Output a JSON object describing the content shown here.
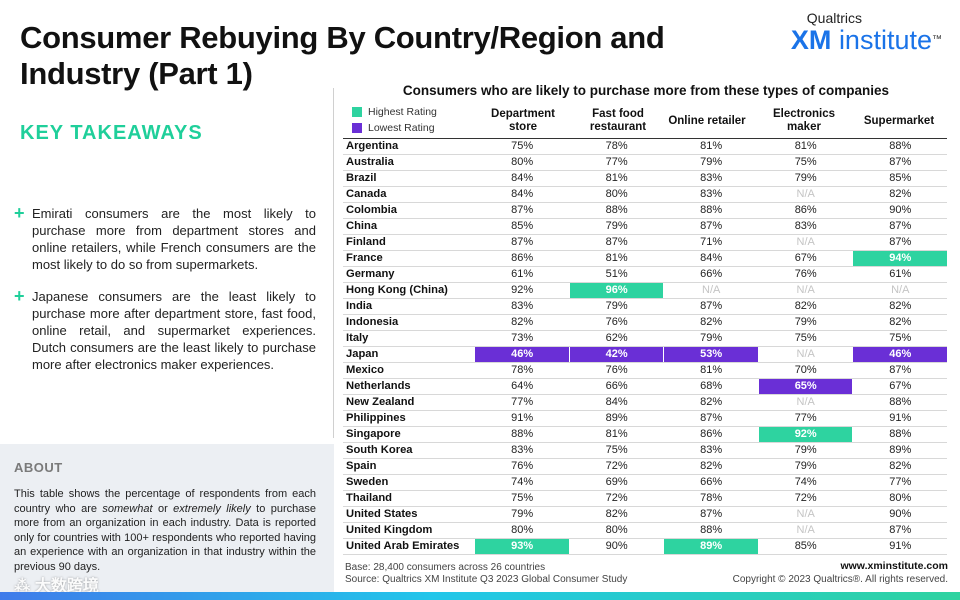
{
  "title": "Consumer Rebuying By Country/Region and Industry (Part 1)",
  "brand": {
    "top": "Qualtrics",
    "xm": "XM",
    "institute": "institute",
    "tm": "™"
  },
  "key_takeaways": {
    "title": "KEY TAKEAWAYS",
    "items": [
      "Emirati consumers are the most likely to purchase more from department stores and online retailers, while  French consumers are the most likely to do so from supermarkets.",
      "Japanese consumers are the least likely to purchase more after department store, fast food, online retail, and supermarket experiences. Dutch consumers are the least likely to purchase more after electronics maker experiences."
    ]
  },
  "about": {
    "title": "ABOUT",
    "text_before_1": "This table shows the percentage of respondents from each country who are ",
    "em1": "somewhat",
    "text_mid": " or ",
    "em2": "extremely likely",
    "text_after": " to purchase more from an organization in each industry. Data is reported only for countries with 100+ respondents who reported having an experience with an organization in that industry within the previous 90 days."
  },
  "watermark": "⁂ 大数跨境",
  "table": {
    "title": "Consumers who are likely to purchase more from these types of companies",
    "legend": {
      "high": "Highest Rating",
      "low": "Lowest Rating"
    },
    "colors": {
      "high": "#2ed3a0",
      "low": "#6a2fd6"
    },
    "columns": [
      "Department store",
      "Fast food restaurant",
      "Online retailer",
      "Electronics maker",
      "Supermarket"
    ],
    "rows": [
      {
        "country": "Argentina",
        "values": [
          "75%",
          "78%",
          "81%",
          "81%",
          "88%"
        ],
        "marks": [
          "",
          "",
          "",
          "",
          ""
        ]
      },
      {
        "country": "Australia",
        "values": [
          "80%",
          "77%",
          "79%",
          "75%",
          "87%"
        ],
        "marks": [
          "",
          "",
          "",
          "",
          ""
        ]
      },
      {
        "country": "Brazil",
        "values": [
          "84%",
          "81%",
          "83%",
          "79%",
          "85%"
        ],
        "marks": [
          "",
          "",
          "",
          "",
          ""
        ]
      },
      {
        "country": "Canada",
        "values": [
          "84%",
          "80%",
          "83%",
          "N/A",
          "82%"
        ],
        "marks": [
          "",
          "",
          "",
          "",
          ""
        ]
      },
      {
        "country": "Colombia",
        "values": [
          "87%",
          "88%",
          "88%",
          "86%",
          "90%"
        ],
        "marks": [
          "",
          "",
          "",
          "",
          ""
        ]
      },
      {
        "country": "China",
        "values": [
          "85%",
          "79%",
          "87%",
          "83%",
          "87%"
        ],
        "marks": [
          "",
          "",
          "",
          "",
          ""
        ]
      },
      {
        "country": "Finland",
        "values": [
          "87%",
          "87%",
          "71%",
          "N/A",
          "87%"
        ],
        "marks": [
          "",
          "",
          "",
          "",
          ""
        ]
      },
      {
        "country": "France",
        "values": [
          "86%",
          "81%",
          "84%",
          "67%",
          "94%"
        ],
        "marks": [
          "",
          "",
          "",
          "",
          "high"
        ]
      },
      {
        "country": "Germany",
        "values": [
          "61%",
          "51%",
          "66%",
          "76%",
          "61%"
        ],
        "marks": [
          "",
          "",
          "",
          "",
          ""
        ]
      },
      {
        "country": "Hong Kong (China)",
        "values": [
          "92%",
          "96%",
          "N/A",
          "N/A",
          "N/A"
        ],
        "marks": [
          "",
          "high",
          "",
          "",
          ""
        ]
      },
      {
        "country": "India",
        "values": [
          "83%",
          "79%",
          "87%",
          "82%",
          "82%"
        ],
        "marks": [
          "",
          "",
          "",
          "",
          ""
        ]
      },
      {
        "country": "Indonesia",
        "values": [
          "82%",
          "76%",
          "82%",
          "79%",
          "82%"
        ],
        "marks": [
          "",
          "",
          "",
          "",
          ""
        ]
      },
      {
        "country": "Italy",
        "values": [
          "73%",
          "62%",
          "79%",
          "75%",
          "75%"
        ],
        "marks": [
          "",
          "",
          "",
          "",
          ""
        ]
      },
      {
        "country": "Japan",
        "values": [
          "46%",
          "42%",
          "53%",
          "N/A",
          "46%"
        ],
        "marks": [
          "low",
          "low",
          "low",
          "",
          "low"
        ]
      },
      {
        "country": "Mexico",
        "values": [
          "78%",
          "76%",
          "81%",
          "70%",
          "87%"
        ],
        "marks": [
          "",
          "",
          "",
          "",
          ""
        ]
      },
      {
        "country": "Netherlands",
        "values": [
          "64%",
          "66%",
          "68%",
          "65%",
          "67%"
        ],
        "marks": [
          "",
          "",
          "",
          "low",
          ""
        ]
      },
      {
        "country": "New Zealand",
        "values": [
          "77%",
          "84%",
          "82%",
          "N/A",
          "88%"
        ],
        "marks": [
          "",
          "",
          "",
          "",
          ""
        ]
      },
      {
        "country": "Philippines",
        "values": [
          "91%",
          "89%",
          "87%",
          "77%",
          "91%"
        ],
        "marks": [
          "",
          "",
          "",
          "",
          ""
        ]
      },
      {
        "country": "Singapore",
        "values": [
          "88%",
          "81%",
          "86%",
          "92%",
          "88%"
        ],
        "marks": [
          "",
          "",
          "",
          "high",
          ""
        ]
      },
      {
        "country": "South Korea",
        "values": [
          "83%",
          "75%",
          "83%",
          "79%",
          "89%"
        ],
        "marks": [
          "",
          "",
          "",
          "",
          ""
        ]
      },
      {
        "country": "Spain",
        "values": [
          "76%",
          "72%",
          "82%",
          "79%",
          "82%"
        ],
        "marks": [
          "",
          "",
          "",
          "",
          ""
        ]
      },
      {
        "country": "Sweden",
        "values": [
          "74%",
          "69%",
          "66%",
          "74%",
          "77%"
        ],
        "marks": [
          "",
          "",
          "",
          "",
          ""
        ]
      },
      {
        "country": "Thailand",
        "values": [
          "75%",
          "72%",
          "78%",
          "72%",
          "80%"
        ],
        "marks": [
          "",
          "",
          "",
          "",
          ""
        ]
      },
      {
        "country": "United States",
        "values": [
          "79%",
          "82%",
          "87%",
          "N/A",
          "90%"
        ],
        "marks": [
          "",
          "",
          "",
          "",
          ""
        ]
      },
      {
        "country": "United Kingdom",
        "values": [
          "80%",
          "80%",
          "88%",
          "N/A",
          "87%"
        ],
        "marks": [
          "",
          "",
          "",
          "",
          ""
        ]
      },
      {
        "country": "United Arab Emirates",
        "values": [
          "93%",
          "90%",
          "89%",
          "85%",
          "91%"
        ],
        "marks": [
          "high",
          "",
          "high",
          "",
          ""
        ]
      }
    ]
  },
  "footer": {
    "base": "Base: 28,400 consumers across 26 countries",
    "source": "Source: Qualtrics XM Institute Q3 2023 Global Consumer Study",
    "url": "www.xminstitute.com",
    "copyright": "Copyright © 2023 Qualtrics®. All rights reserved."
  }
}
